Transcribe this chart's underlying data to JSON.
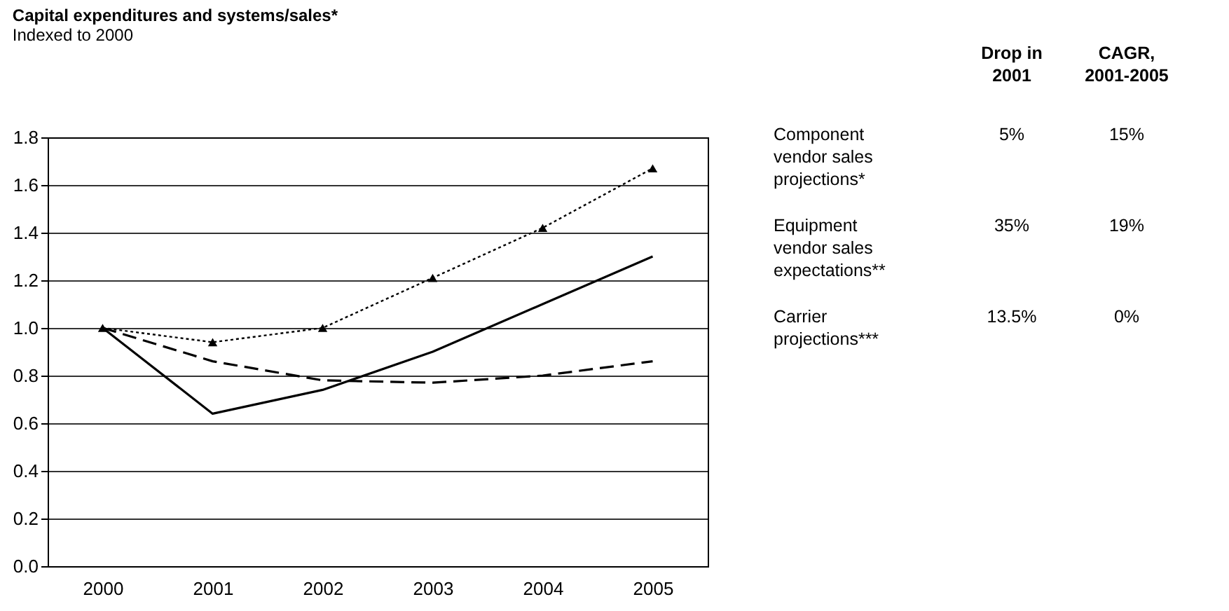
{
  "chart_data": {
    "type": "line",
    "title": "Capital expenditures and systems/sales*",
    "subtitle": "Indexed to 2000",
    "categories": [
      "2000",
      "2001",
      "2002",
      "2003",
      "2004",
      "2005"
    ],
    "series": [
      {
        "color": "#000000",
        "line_style": "dotted",
        "marker": "triangle",
        "values": [
          1.0,
          0.94,
          1.0,
          1.21,
          1.42,
          1.67
        ]
      },
      {
        "color": "#000000",
        "line_style": "solid",
        "marker": "none",
        "values": [
          1.0,
          0.64,
          0.74,
          0.9,
          1.1,
          1.3
        ]
      },
      {
        "color": "#000000",
        "line_style": "dashed",
        "marker": "none",
        "values": [
          1.0,
          0.86,
          0.78,
          0.77,
          0.8,
          0.86
        ]
      }
    ],
    "ylim": [
      0,
      1.8
    ],
    "yticks": [
      {
        "value": 0,
        "label": "0.0"
      },
      0.2,
      0.4,
      0.6,
      0.8,
      {
        "value": 1,
        "label": "1.0"
      },
      1.2,
      1.4,
      1.6,
      1.8
    ],
    "grid": "y",
    "annotations": [
      "Drop in\n2001",
      "CAGR,\n2001-2005",
      "Component\nvendor sales\nprojections*",
      "5%",
      "15%",
      "Equipment\nvendor sales\nexpectations**",
      "35%",
      "19%",
      "Carrier\nprojections***",
      "13.5%",
      "0%"
    ]
  }
}
